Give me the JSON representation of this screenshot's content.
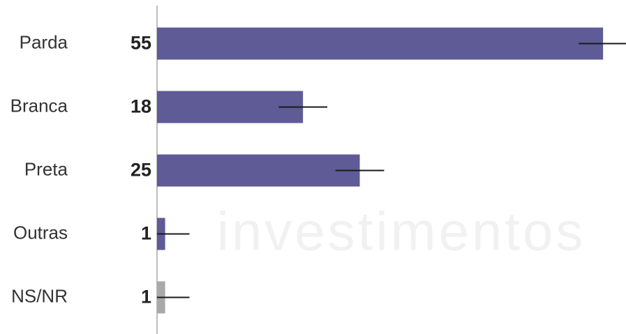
{
  "chart_data": {
    "type": "bar",
    "orientation": "horizontal",
    "watermark": "investimentos",
    "categories": [
      "Parda",
      "Branca",
      "Preta",
      "Outras",
      "NS/NR"
    ],
    "values": [
      55,
      18,
      25,
      1,
      1
    ],
    "errors": [
      3,
      3,
      3,
      3,
      3
    ],
    "colors": [
      "#5e5b96",
      "#5e5b96",
      "#5e5b96",
      "#5e5b96",
      "#a9a9a9"
    ],
    "xlim": [
      0,
      58
    ]
  }
}
